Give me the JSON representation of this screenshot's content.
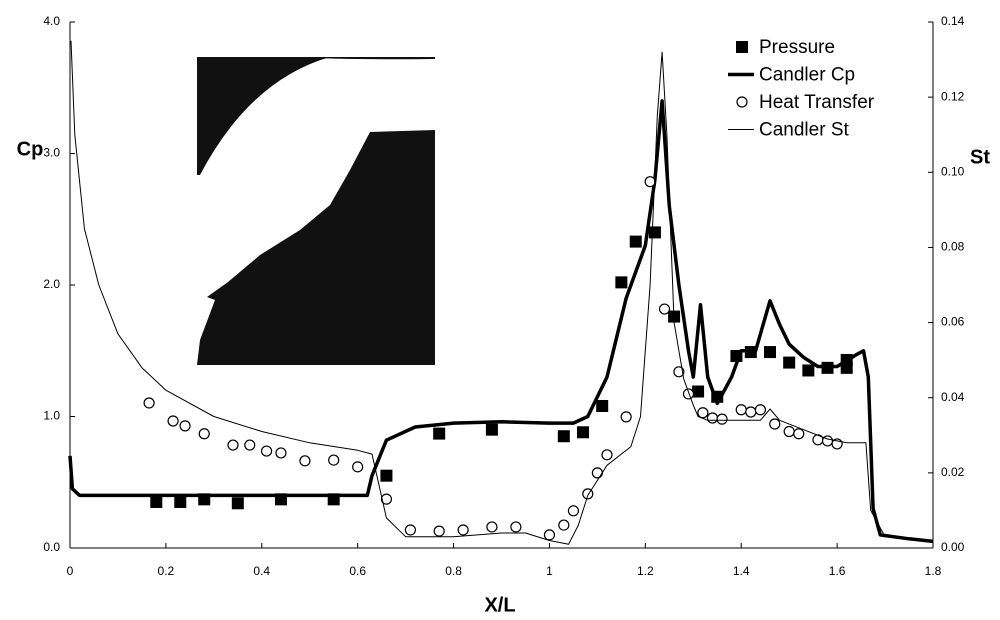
{
  "chart_data": {
    "type": "line",
    "xlabel": "X/L",
    "ylabel": "Cp",
    "y2label": "St",
    "xlim": [
      0,
      1.8
    ],
    "xticks": [
      0,
      0.2,
      0.4,
      0.6,
      0.8,
      1,
      1.2,
      1.4,
      1.6,
      1.8
    ],
    "ylim": [
      0,
      4
    ],
    "yticks": [
      {
        "value": 0,
        "label": "0.0"
      },
      {
        "value": 1,
        "label": "1.0"
      },
      {
        "value": 2,
        "label": "2.0"
      },
      {
        "value": 3,
        "label": "3.0"
      },
      {
        "value": 4,
        "label": "4.0"
      }
    ],
    "y2lim": [
      0,
      0.14
    ],
    "y2ticks": [
      {
        "value": 0,
        "label": "0.00"
      },
      {
        "value": 0.02,
        "label": "0.02"
      },
      {
        "value": 0.04,
        "label": "0.04"
      },
      {
        "value": 0.06,
        "label": "0.06"
      },
      {
        "value": 0.08,
        "label": "0.08"
      },
      {
        "value": 0.1,
        "label": "0.10"
      },
      {
        "value": 0.12,
        "label": "0.12"
      },
      {
        "value": 0.14,
        "label": "0.14"
      }
    ],
    "grid": false,
    "legend": "upper right",
    "series": [
      {
        "name": "Pressure",
        "type": "scatter",
        "marker": "square",
        "color": "#000000",
        "x": [
          0.18,
          0.23,
          0.28,
          0.35,
          0.44,
          0.55,
          0.66,
          0.77,
          0.88,
          1.03,
          1.07,
          1.11,
          1.15,
          1.18,
          1.22,
          1.26,
          1.31,
          1.35,
          1.39,
          1.42,
          1.46,
          1.5,
          1.54,
          1.58,
          1.62,
          1.62
        ],
        "values": [
          0.35,
          0.35,
          0.37,
          0.34,
          0.37,
          0.37,
          0.55,
          0.87,
          0.9,
          0.85,
          0.88,
          1.08,
          2.02,
          2.33,
          2.4,
          1.76,
          1.19,
          1.15,
          1.46,
          1.49,
          1.49,
          1.41,
          1.35,
          1.37,
          1.43,
          1.37
        ]
      },
      {
        "name": "Candler Cp",
        "type": "line",
        "width": 3.5,
        "color": "#000000",
        "x": [
          0,
          0.005,
          0.02,
          0.62,
          0.63,
          0.66,
          0.72,
          0.8,
          0.9,
          1.0,
          1.05,
          1.08,
          1.12,
          1.16,
          1.2,
          1.22,
          1.235,
          1.25,
          1.27,
          1.29,
          1.3,
          1.315,
          1.33,
          1.35,
          1.38,
          1.4,
          1.43,
          1.46,
          1.48,
          1.5,
          1.53,
          1.56,
          1.6,
          1.64,
          1.655,
          1.665,
          1.675,
          1.69,
          1.75,
          1.8
        ],
        "values": [
          0.7,
          0.45,
          0.4,
          0.4,
          0.55,
          0.82,
          0.92,
          0.95,
          0.96,
          0.95,
          0.95,
          1.0,
          1.3,
          1.9,
          2.3,
          2.8,
          3.4,
          2.6,
          2.0,
          1.5,
          1.3,
          1.85,
          1.3,
          1.1,
          1.3,
          1.5,
          1.5,
          1.88,
          1.7,
          1.55,
          1.45,
          1.38,
          1.38,
          1.47,
          1.5,
          1.3,
          0.3,
          0.1,
          0.07,
          0.05
        ]
      },
      {
        "name": "Heat Transfer",
        "type": "scatter",
        "marker": "circle",
        "color": "#000000",
        "axis": "y2",
        "x": [
          0.165,
          0.215,
          0.24,
          0.28,
          0.34,
          0.375,
          0.41,
          0.44,
          0.49,
          0.55,
          0.6,
          0.66,
          0.71,
          0.77,
          0.82,
          0.88,
          0.93,
          1.0,
          1.03,
          1.05,
          1.08,
          1.1,
          1.12,
          1.16,
          1.21,
          1.24,
          1.27,
          1.29,
          1.32,
          1.34,
          1.36,
          1.4,
          1.42,
          1.44,
          1.47,
          1.5,
          1.52,
          1.56,
          1.58,
          1.6
        ],
        "values": [
          0.0386,
          0.0338,
          0.0325,
          0.0304,
          0.0274,
          0.0274,
          0.0258,
          0.0253,
          0.0232,
          0.0234,
          0.0216,
          0.013,
          0.0048,
          0.0045,
          0.0048,
          0.0056,
          0.0056,
          0.0035,
          0.0061,
          0.0099,
          0.0144,
          0.02,
          0.0248,
          0.0349,
          0.0975,
          0.0636,
          0.0469,
          0.041,
          0.036,
          0.0346,
          0.0343,
          0.0368,
          0.0362,
          0.0368,
          0.033,
          0.031,
          0.0304,
          0.0288,
          0.0285,
          0.0277
        ]
      },
      {
        "name": "Candler St",
        "type": "line",
        "width": 1,
        "color": "#000000",
        "axis": "y2",
        "x": [
          0.002,
          0.01,
          0.03,
          0.06,
          0.1,
          0.15,
          0.2,
          0.3,
          0.4,
          0.5,
          0.6,
          0.63,
          0.66,
          0.7,
          0.8,
          0.9,
          0.95,
          1.0,
          1.04,
          1.06,
          1.08,
          1.12,
          1.17,
          1.19,
          1.21,
          1.225,
          1.235,
          1.245,
          1.26,
          1.28,
          1.3,
          1.31,
          1.33,
          1.37,
          1.4,
          1.44,
          1.46,
          1.48,
          1.52,
          1.58,
          1.62,
          1.66,
          1.67,
          1.7,
          1.8
        ],
        "values": [
          0.135,
          0.11,
          0.085,
          0.07,
          0.057,
          0.048,
          0.042,
          0.035,
          0.031,
          0.028,
          0.026,
          0.025,
          0.008,
          0.003,
          0.003,
          0.004,
          0.004,
          0.002,
          0.001,
          0.006,
          0.014,
          0.022,
          0.027,
          0.035,
          0.07,
          0.115,
          0.132,
          0.11,
          0.06,
          0.045,
          0.038,
          0.035,
          0.034,
          0.034,
          0.034,
          0.034,
          0.037,
          0.034,
          0.032,
          0.029,
          0.028,
          0.028,
          0.01,
          0.003,
          0.002
        ]
      }
    ]
  }
}
